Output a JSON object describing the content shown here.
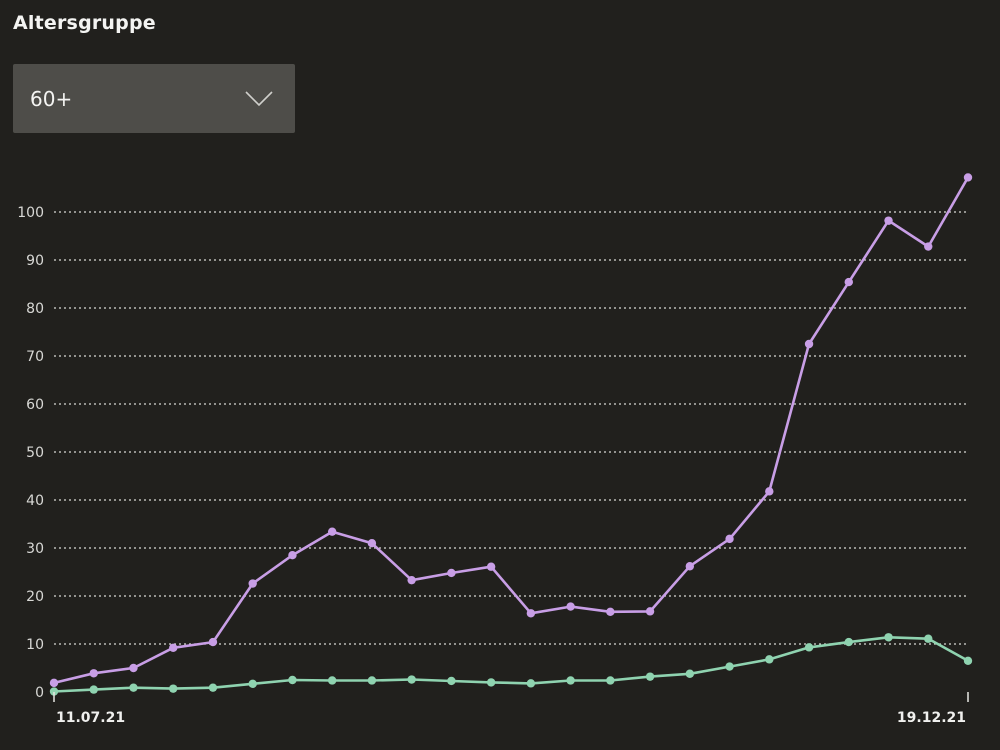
{
  "filter": {
    "label": "Altersgruppe",
    "selected": "60+"
  },
  "icons": {
    "dropdown": "chevron-down-icon"
  },
  "chart_data": {
    "type": "line",
    "title": "",
    "xlabel": "",
    "ylabel": "",
    "x_start_label": "11.07.21",
    "x_end_label": "19.12.21",
    "x": [
      "11.07.21",
      "18.07.21",
      "25.07.21",
      "01.08.21",
      "08.08.21",
      "15.08.21",
      "22.08.21",
      "29.08.21",
      "05.09.21",
      "12.09.21",
      "19.09.21",
      "26.09.21",
      "03.10.21",
      "10.10.21",
      "17.10.21",
      "24.10.21",
      "31.10.21",
      "07.11.21",
      "14.11.21",
      "21.11.21",
      "28.11.21",
      "05.12.21",
      "12.12.21",
      "19.12.21"
    ],
    "ylim": [
      0,
      100
    ],
    "yticks": [
      0,
      10,
      20,
      30,
      40,
      50,
      60,
      70,
      80,
      90,
      100
    ],
    "grid": true,
    "series": [
      {
        "color": "#c89ee6",
        "values": [
          1.9,
          3.9,
          5.0,
          9.2,
          10.4,
          22.6,
          28.5,
          33.4,
          31.0,
          23.3,
          24.8,
          26.1,
          16.4,
          17.8,
          16.7,
          16.8,
          26.2,
          31.9,
          41.8,
          72.5,
          85.4,
          98.2,
          92.8,
          107.2
        ]
      },
      {
        "color": "#8fd3b0",
        "values": [
          0.1,
          0.5,
          0.9,
          0.7,
          0.9,
          1.7,
          2.5,
          2.4,
          2.4,
          2.6,
          2.3,
          2.0,
          1.8,
          2.4,
          2.4,
          3.2,
          3.8,
          5.3,
          6.8,
          9.3,
          10.4,
          11.4,
          11.1,
          6.5
        ]
      }
    ]
  }
}
